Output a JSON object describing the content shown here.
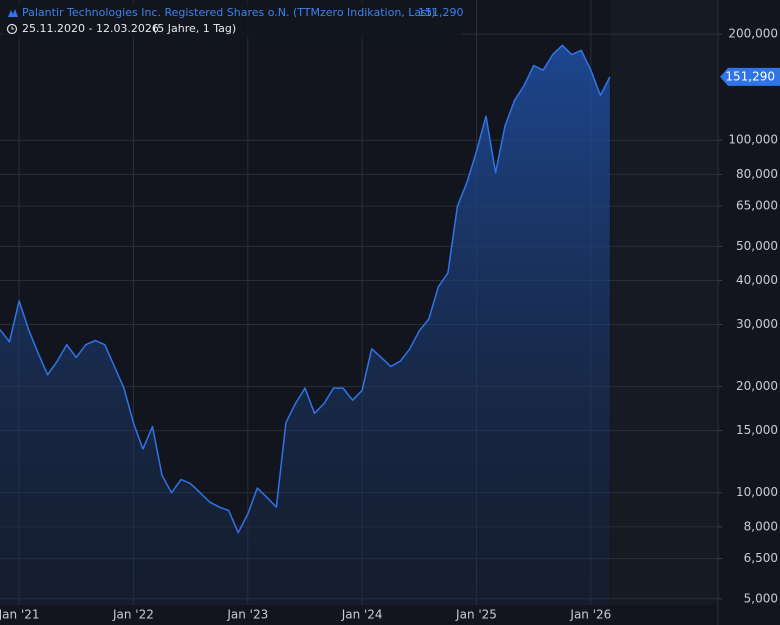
{
  "chart_data": {
    "type": "area",
    "title": "Palantir Technologies Inc. Registered Shares o.N. (TTMzero Indikation, Last)",
    "subtitle": "25.11.2020 - 12.03.2026",
    "period": "(5 Jahre, 1 Tag)",
    "color": "#2f74e8",
    "log_scale": true,
    "grid": true,
    "categories": [
      null,
      null,
      "Jan '21",
      null,
      null,
      null,
      null,
      null,
      null,
      null,
      null,
      null,
      null,
      null,
      "Jan '22",
      null,
      null,
      null,
      null,
      null,
      null,
      null,
      null,
      null,
      null,
      null,
      "Jan '23",
      null,
      null,
      null,
      null,
      null,
      null,
      null,
      null,
      null,
      null,
      null,
      "Jan '24",
      null,
      null,
      null,
      null,
      null,
      null,
      null,
      null,
      null,
      null,
      null,
      "Jan '25",
      null,
      null,
      null,
      null,
      null,
      null,
      null,
      null,
      null,
      null,
      null,
      "Jan '26",
      null,
      null
    ],
    "values": [
      29000,
      26800,
      35000,
      29000,
      24900,
      21600,
      23600,
      26300,
      24200,
      26300,
      27000,
      26300,
      22800,
      19800,
      15800,
      13300,
      15400,
      11200,
      10000,
      10900,
      10600,
      10000,
      9400,
      9100,
      8900,
      7700,
      8700,
      10300,
      9700,
      9100,
      15800,
      17900,
      19800,
      16800,
      17900,
      19800,
      19800,
      18300,
      19500,
      25600,
      24200,
      22800,
      23600,
      25600,
      28800,
      31100,
      38400,
      42000,
      65000,
      76000,
      93000,
      117000,
      81000,
      110000,
      130000,
      143000,
      163000,
      158000,
      175000,
      186000,
      175000,
      180000,
      158000,
      134000,
      151290
    ],
    "value_labels": [
      null,
      null,
      null,
      null,
      null,
      null,
      null,
      null,
      null,
      null,
      null,
      null,
      null,
      null,
      null,
      null,
      null,
      null,
      null,
      null,
      null,
      null,
      null,
      null,
      null,
      null,
      null,
      null,
      null,
      null,
      null,
      null,
      null,
      null,
      null,
      null,
      null,
      null,
      null,
      null,
      null,
      null,
      null,
      null,
      null,
      null,
      null,
      null,
      null,
      null,
      null,
      null,
      null,
      null,
      null,
      null,
      null,
      null,
      null,
      null,
      null,
      null,
      null,
      null,
      "151,290"
    ],
    "ylim": [
      4800,
      250000
    ],
    "yticks": [
      {
        "value": 5000,
        "label": "5,000"
      },
      {
        "value": 6500,
        "label": "6,500"
      },
      {
        "value": 8000,
        "label": "8,000"
      },
      {
        "value": 10000,
        "label": "10,000"
      },
      {
        "value": 15000,
        "label": "15,000"
      },
      {
        "value": 20000,
        "label": "20,000"
      },
      {
        "value": 30000,
        "label": "30,000"
      },
      {
        "value": 40000,
        "label": "40,000"
      },
      {
        "value": 50000,
        "label": "50,000"
      },
      {
        "value": 65000,
        "label": "65,000"
      },
      {
        "value": 80000,
        "label": "80,000"
      },
      {
        "value": 100000,
        "label": "100,000"
      },
      {
        "value": 200000,
        "label": "200,000"
      }
    ]
  }
}
